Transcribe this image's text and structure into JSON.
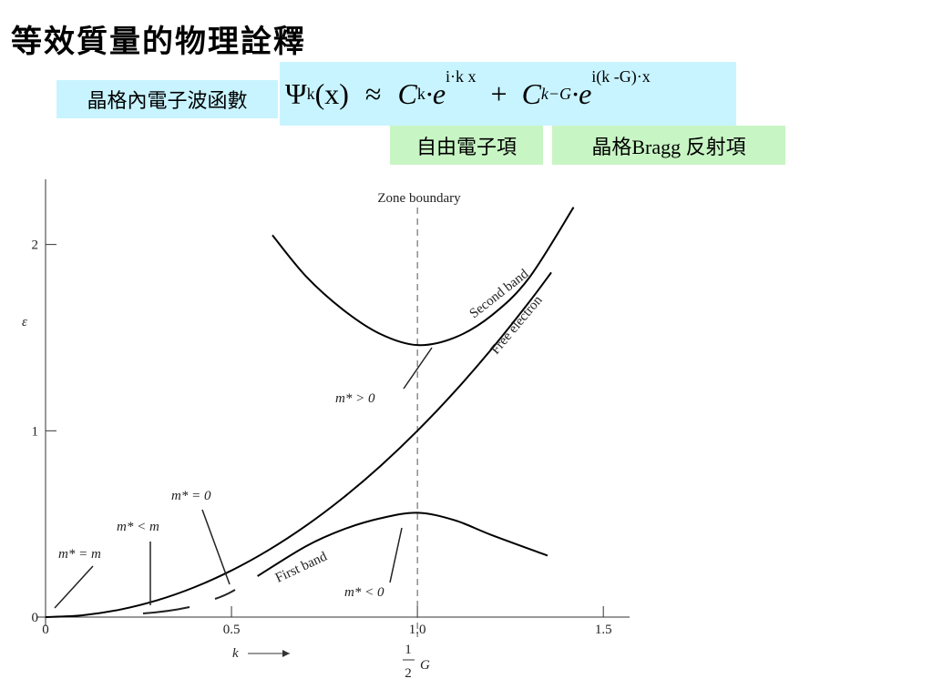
{
  "slide": {
    "title": "等效質量的物理詮釋",
    "wavefunction_label": "晶格內電子波函數",
    "formula": {
      "psi": "Ψ",
      "psi_sub": "k",
      "arg": "(x)",
      "approx": "≈",
      "c1": "C",
      "c1_sub": "k",
      "e1": "·e",
      "e1_sup": "i·k x",
      "plus": "+",
      "c2": "C",
      "c2_sub": "k−G",
      "e2": "·e",
      "e2_sup": "i(k -G)·x"
    },
    "free_term": "自由電子項",
    "bragg_term": "晶格Bragg 反射項"
  },
  "chart_data": {
    "type": "line",
    "x_label": "k",
    "y_label": "ε",
    "boundary_label": {
      "numerator": "1",
      "denominator": "2",
      "symbol": "G"
    },
    "xlim": [
      0,
      1.6
    ],
    "ylim": [
      0,
      2.35
    ],
    "xticks": [
      0,
      0.5,
      {
        "value": 1,
        "label": "1.0"
      },
      1.5
    ],
    "yticks": [
      0,
      1,
      2
    ],
    "series": [
      {
        "name": "Free electron",
        "color": "#000000",
        "x": [
          0,
          0.1,
          0.2,
          0.3,
          0.4,
          0.5,
          0.6,
          0.7,
          0.8,
          0.9,
          1.0,
          1.1,
          1.2,
          1.3,
          1.36
        ],
        "values": [
          0,
          0.01,
          0.04,
          0.09,
          0.16,
          0.25,
          0.36,
          0.49,
          0.64,
          0.81,
          1.0,
          1.21,
          1.44,
          1.69,
          1.85
        ]
      },
      {
        "name": "First band",
        "color": "#000000",
        "x": [
          0.57,
          0.7,
          0.8,
          0.9,
          1.0,
          1.1,
          1.2,
          1.35
        ],
        "values": [
          0.22,
          0.38,
          0.47,
          0.53,
          0.56,
          0.52,
          0.44,
          0.33
        ]
      },
      {
        "name": "Second band",
        "color": "#000000",
        "x": [
          0.61,
          0.7,
          0.8,
          0.9,
          1.0,
          1.1,
          1.2,
          1.3,
          1.42
        ],
        "values": [
          2.05,
          1.83,
          1.65,
          1.52,
          1.46,
          1.5,
          1.62,
          1.82,
          2.2
        ]
      }
    ],
    "annotations": [
      "Zone boundary",
      "m* > 0",
      "m* = 0",
      "m* < m",
      "m* = m",
      "m* < 0"
    ]
  }
}
